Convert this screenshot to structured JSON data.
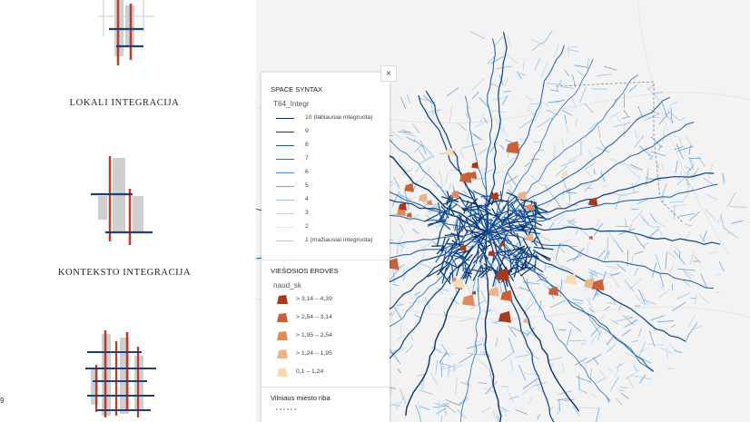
{
  "left_panel": {
    "captions": {
      "local": "LOKALI INTEGRACIJA",
      "context": "KONTEKSTO INTEGRACIJA"
    },
    "page_fragment": "9"
  },
  "legend": {
    "close_label": "×",
    "space_syntax": {
      "title": "SPACE SYNTAX",
      "field": "T64_Integr",
      "items": [
        {
          "label": "10 (labiausiai integruota)",
          "color": "#08306b",
          "width": 1.6
        },
        {
          "label": "9",
          "color": "#0b3f86",
          "width": 1.5
        },
        {
          "label": "8",
          "color": "#1c5a9e",
          "width": 1.4
        },
        {
          "label": "7",
          "color": "#2c6fb3",
          "width": 1.3
        },
        {
          "label": "6",
          "color": "#4a8bc6",
          "width": 1.2
        },
        {
          "label": "5",
          "color": "#6ea6d6",
          "width": 1.1
        },
        {
          "label": "4",
          "color": "#98c0e3",
          "width": 1.0
        },
        {
          "label": "3",
          "color": "#bcd6ee",
          "width": 0.9
        },
        {
          "label": "2",
          "color": "#dbe7f3",
          "width": 0.8
        },
        {
          "label": "1 (mažiausiai integruota)",
          "color": "#c9c9c9",
          "width": 1.4
        }
      ]
    },
    "public_spaces": {
      "title": "VIEŠOSIOS ERDVĖS",
      "field": "naud_sk",
      "items": [
        {
          "label": "> 3,14 – 4,39",
          "color": "#a63b1e"
        },
        {
          "label": "> 2,54 – 3,14",
          "color": "#c8603a"
        },
        {
          "label": "> 1,95 – 2,54",
          "color": "#df8a5c"
        },
        {
          "label": "> 1,24 – 1,95",
          "color": "#ebb386"
        },
        {
          "label": "0,1 – 1,24",
          "color": "#f6dcb3"
        }
      ]
    },
    "boundary": {
      "title": "Vilniaus miesto riba"
    }
  },
  "colors": {
    "diagram_red": "#c0392b",
    "diagram_blue": "#1f3f7a",
    "diagram_gray": "#cfcfcf",
    "map_background": "#f3f3f3"
  }
}
